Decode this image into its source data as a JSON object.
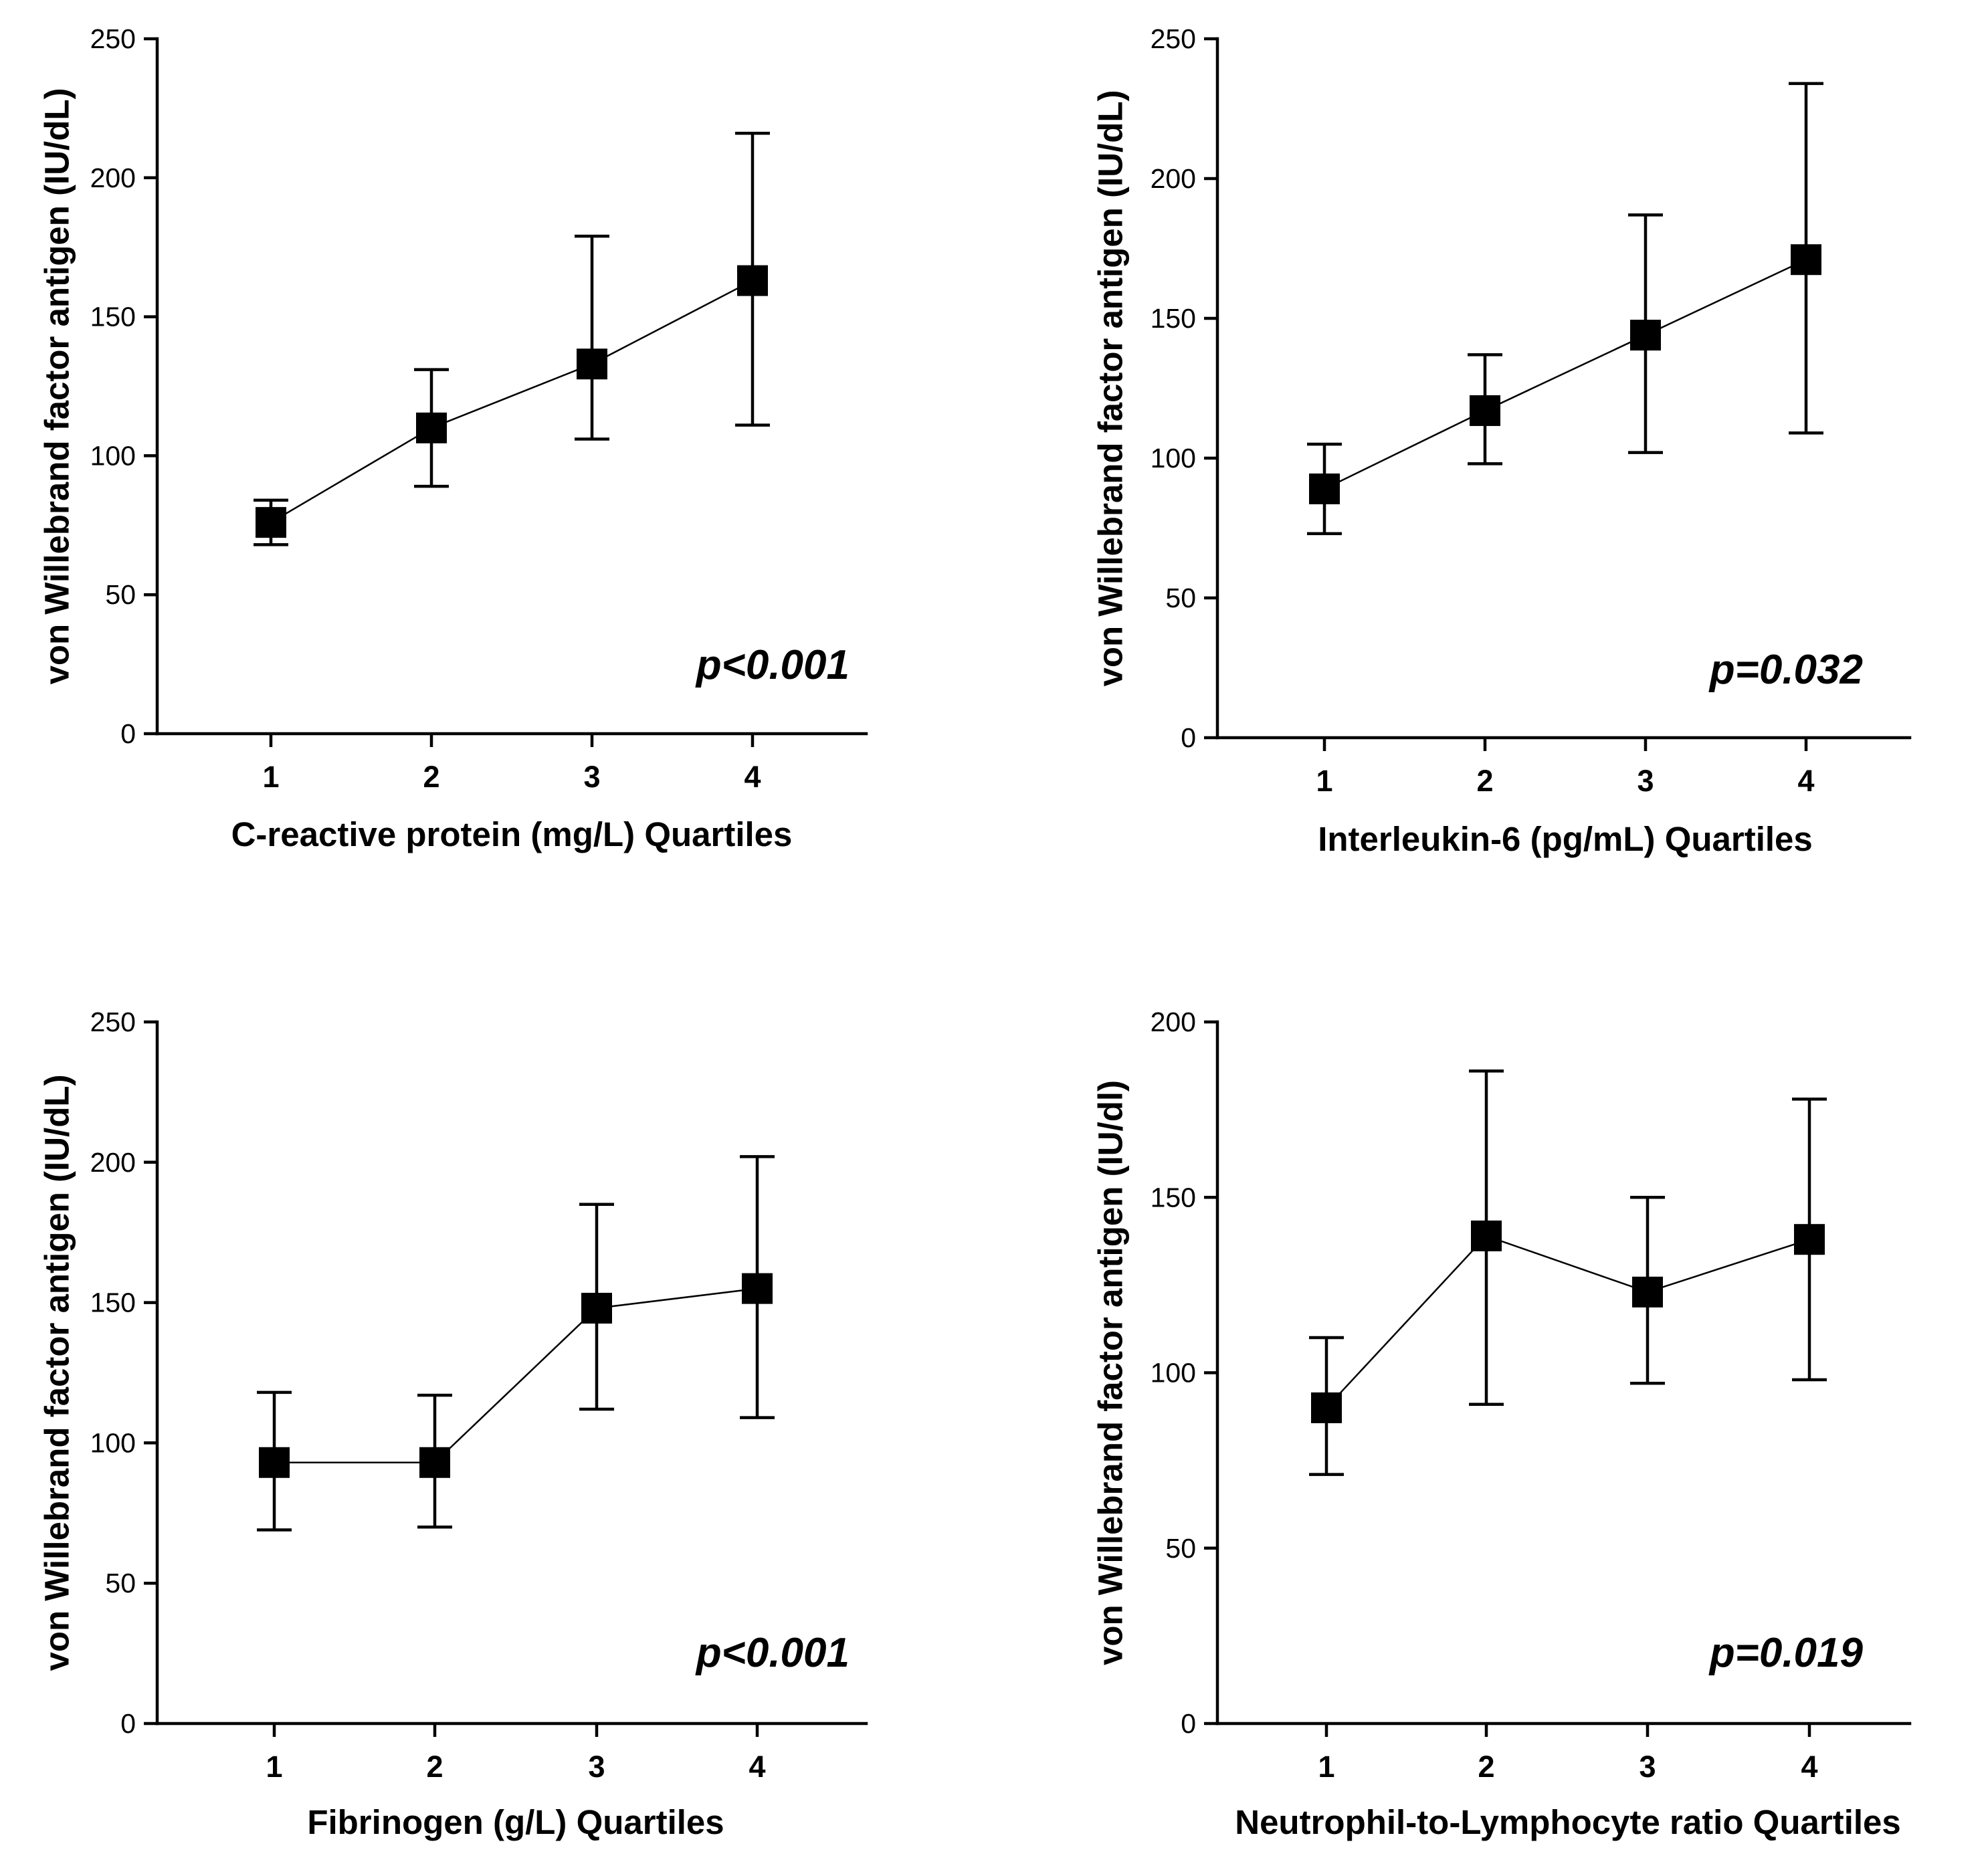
{
  "chart_data": [
    {
      "type": "line",
      "x": [
        1,
        2,
        3,
        4
      ],
      "xticklabels": [
        "1",
        "2",
        "3",
        "4"
      ],
      "xlabel": "C-reactive protein (mg/L) Quartiles",
      "ylabel": "von Willebrand factor antigen (IU/dL)",
      "ylim": [
        0,
        250
      ],
      "yticks": [
        0,
        50,
        100,
        150,
        200,
        250
      ],
      "series": [
        {
          "values": [
            76,
            110,
            133,
            163
          ],
          "err_low": [
            68,
            89,
            106,
            111
          ],
          "err_high": [
            84,
            131,
            179,
            216
          ]
        }
      ],
      "annotation": "p<0.001",
      "grid": false
    },
    {
      "type": "line",
      "x": [
        1,
        2,
        3,
        4
      ],
      "xticklabels": [
        "1",
        "2",
        "3",
        "4"
      ],
      "xlabel": "Interleukin-6 (pg/mL) Quartiles",
      "ylabel": "von Willebrand factor antigen (IU/dL)",
      "ylim": [
        0,
        250
      ],
      "yticks": [
        0,
        50,
        100,
        150,
        200,
        250
      ],
      "series": [
        {
          "values": [
            89,
            117,
            144,
            171
          ],
          "err_low": [
            73,
            98,
            102,
            109
          ],
          "err_high": [
            105,
            137,
            187,
            234
          ]
        }
      ],
      "annotation": "p=0.032",
      "grid": false
    },
    {
      "type": "line",
      "x": [
        1,
        2,
        3,
        4
      ],
      "xticklabels": [
        "1",
        "2",
        "3",
        "4"
      ],
      "xlabel": "Fibrinogen (g/L) Quartiles",
      "ylabel": "von Willebrand factor antigen (IU/dL)",
      "ylim": [
        0,
        250
      ],
      "yticks": [
        0,
        50,
        100,
        150,
        200,
        250
      ],
      "series": [
        {
          "values": [
            93,
            93,
            148,
            155
          ],
          "err_low": [
            69,
            70,
            112,
            109
          ],
          "err_high": [
            118,
            117,
            185,
            202
          ]
        }
      ],
      "annotation": "p<0.001",
      "grid": false
    },
    {
      "type": "line",
      "x": [
        1,
        2,
        3,
        4
      ],
      "xticklabels": [
        "1",
        "2",
        "3",
        "4"
      ],
      "xlabel": "Neutrophil-to-Lymphocyte ratio Quartiles",
      "ylabel": "von Willebrand factor antigen (IU/dl)",
      "ylim": [
        0,
        200
      ],
      "yticks": [
        0,
        50,
        100,
        150,
        200
      ],
      "series": [
        {
          "values": [
            90,
            139,
            123,
            138
          ],
          "err_low": [
            71,
            91,
            97,
            98
          ],
          "err_high": [
            110,
            186,
            150,
            178
          ]
        }
      ],
      "annotation": "p=0.019",
      "grid": false
    }
  ]
}
